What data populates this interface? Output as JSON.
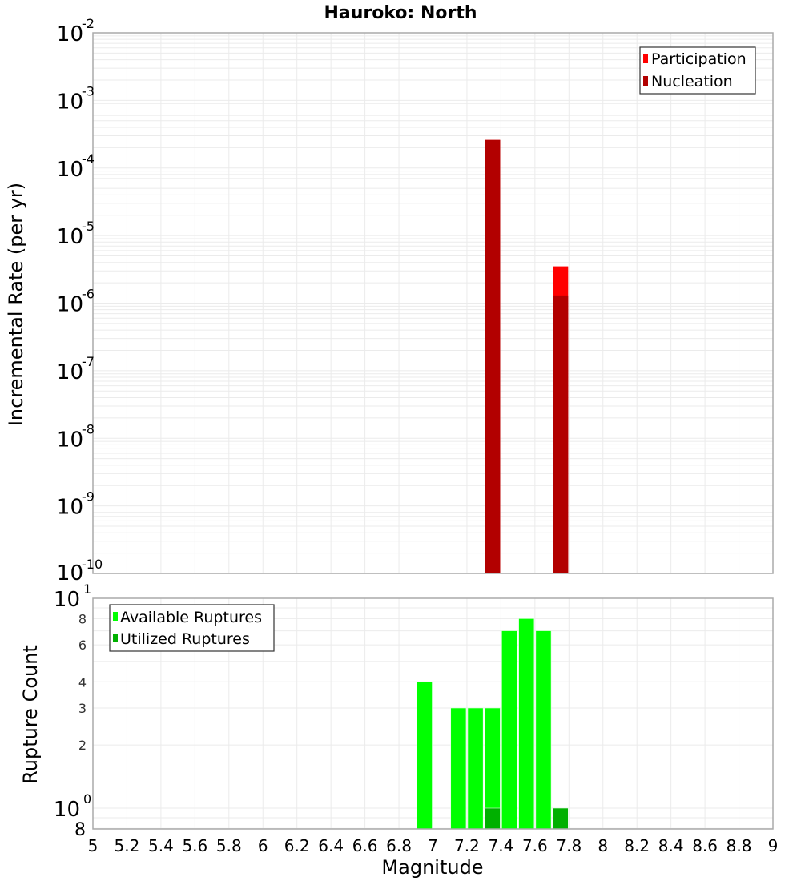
{
  "chart_data": [
    {
      "type": "bar",
      "title": "Hauroko: North",
      "xlabel": "Magnitude",
      "ylabel": "Incremental Rate (per yr)",
      "yscale": "log",
      "ylim": [
        1e-10,
        0.01
      ],
      "xlim": [
        5,
        9
      ],
      "grid": true,
      "legend_position": "top-right",
      "y_ticks": [
        "10^-2",
        "10^-3",
        "10^-4",
        "10^-5",
        "10^-6",
        "10^-7",
        "10^-8",
        "10^-9",
        "10^-10"
      ],
      "bin_width": 0.1,
      "series": [
        {
          "name": "Participation",
          "color": "#ff0000",
          "x": [
            7.35,
            7.75
          ],
          "values": [
            0.00026,
            3.5e-06
          ]
        },
        {
          "name": "Nucleation",
          "color": "#b20000",
          "x": [
            7.35,
            7.75
          ],
          "values": [
            0.00026,
            1.3e-06
          ]
        }
      ]
    },
    {
      "type": "bar",
      "title": "",
      "xlabel": "Magnitude",
      "ylabel": "Rupture Count",
      "yscale": "log",
      "ylim": [
        0.8,
        10
      ],
      "xlim": [
        5,
        9
      ],
      "grid": true,
      "legend_position": "top-left",
      "y_ticks": [
        "10^1",
        "8",
        "6",
        "4",
        "3",
        "2",
        "10^0",
        "8"
      ],
      "x_ticks": [
        "5",
        "5.2",
        "5.4",
        "5.6",
        "5.8",
        "6",
        "6.2",
        "6.4",
        "6.6",
        "6.8",
        "7",
        "7.2",
        "7.4",
        "7.6",
        "7.8",
        "8",
        "8.2",
        "8.4",
        "8.6",
        "8.8",
        "9"
      ],
      "bin_width": 0.1,
      "series": [
        {
          "name": "Available Ruptures",
          "color": "#00ff00",
          "x": [
            6.95,
            7.15,
            7.25,
            7.35,
            7.45,
            7.55,
            7.65
          ],
          "values": [
            4,
            3,
            3,
            3,
            7,
            8,
            7
          ]
        },
        {
          "name": "Utilized Ruptures",
          "color": "#00b000",
          "x": [
            7.35,
            7.75
          ],
          "values": [
            1,
            1
          ]
        }
      ]
    }
  ],
  "labels": {
    "title": "Hauroko: North",
    "top_ylabel": "Incremental Rate (per yr)",
    "bottom_ylabel": "Rupture Count",
    "xlabel": "Magnitude",
    "legend_top": [
      "Participation",
      "Nucleation"
    ],
    "legend_bottom": [
      "Available Ruptures",
      "Utilized Ruptures"
    ]
  }
}
